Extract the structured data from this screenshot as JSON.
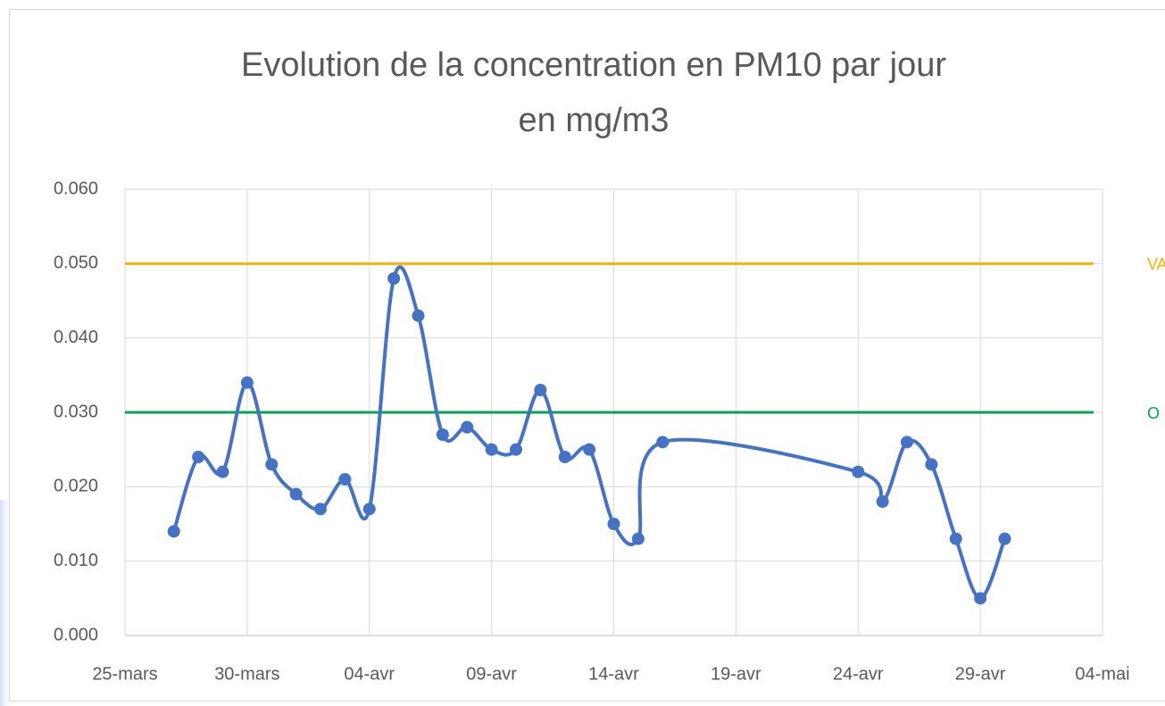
{
  "chart_data": {
    "type": "line",
    "title": [
      "Evolution de la concentration en PM10 par jour",
      "en mg/m3"
    ],
    "x": [
      "03-27",
      "03-28",
      "03-29",
      "03-30",
      "03-31",
      "04-01",
      "04-02",
      "04-03",
      "04-04",
      "04-05",
      "04-06",
      "04-07",
      "04-08",
      "04-09",
      "04-10",
      "04-11",
      "04-12",
      "04-13",
      "04-14",
      "04-15",
      "04-16",
      "04-24",
      "04-25",
      "04-26",
      "04-27",
      "04-28",
      "04-29",
      "04-30"
    ],
    "series": [
      {
        "color": "#4472c4",
        "values": [
          0.014,
          0.024,
          0.022,
          0.034,
          0.023,
          0.019,
          0.017,
          0.021,
          0.017,
          0.048,
          0.043,
          0.027,
          0.028,
          0.025,
          0.025,
          0.033,
          0.024,
          0.025,
          0.015,
          0.013,
          0.026,
          0.022,
          0.018,
          0.026,
          0.023,
          0.013,
          0.005,
          0.013
        ]
      }
    ],
    "reference_lines": [
      {
        "label": "VA",
        "value": 0.05,
        "color": "#f5b400"
      },
      {
        "label": "O",
        "value": 0.03,
        "color": "#00a650"
      }
    ],
    "xlim": [
      "03-25",
      "05-04"
    ],
    "xticks": [
      {
        "value": "03-25",
        "label": "25-mars"
      },
      {
        "value": "03-30",
        "label": "30-mars"
      },
      {
        "value": "04-04",
        "label": "04-avr"
      },
      {
        "value": "04-09",
        "label": "09-avr"
      },
      {
        "value": "04-14",
        "label": "14-avr"
      },
      {
        "value": "04-19",
        "label": "19-avr"
      },
      {
        "value": "04-24",
        "label": "24-avr"
      },
      {
        "value": "04-29",
        "label": "29-avr"
      },
      {
        "value": "05-04",
        "label": "04-mai"
      }
    ],
    "ylim": [
      0,
      0.06
    ],
    "yticks": [
      {
        "value": 0,
        "label": "0.000"
      },
      {
        "value": 0.01,
        "label": "0.010"
      },
      {
        "value": 0.02,
        "label": "0.020"
      },
      {
        "value": 0.03,
        "label": "0.030"
      },
      {
        "value": 0.04,
        "label": "0.040"
      },
      {
        "value": 0.05,
        "label": "0.050"
      },
      {
        "value": 0.06,
        "label": "0.060"
      }
    ],
    "grid": true
  }
}
